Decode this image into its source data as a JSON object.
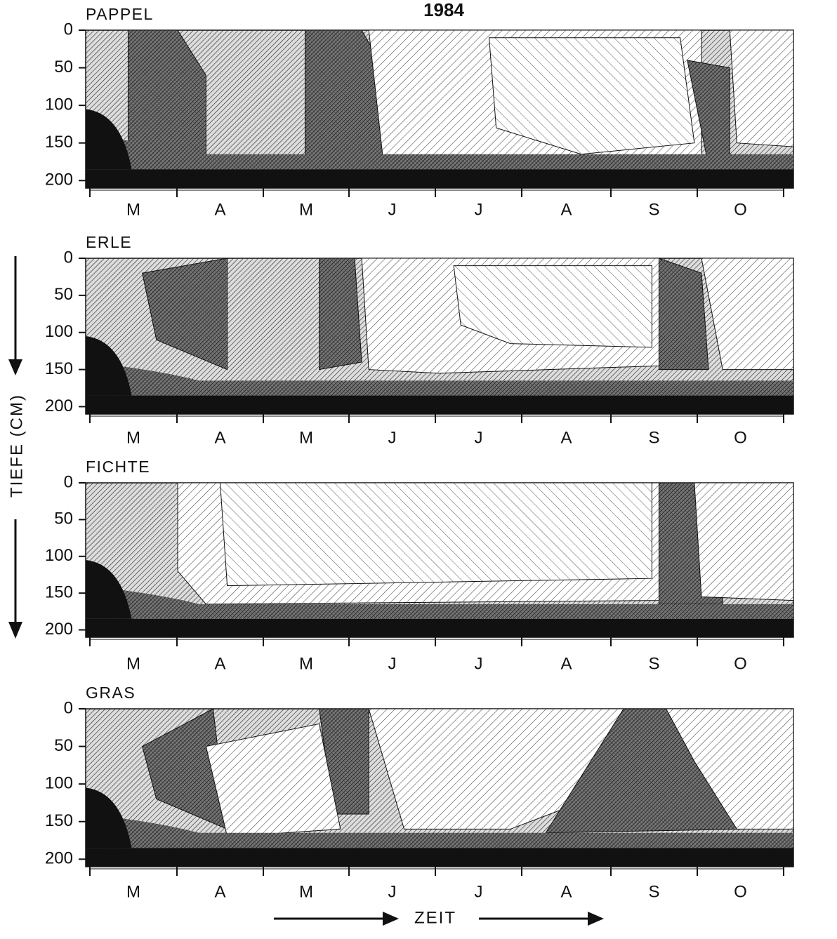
{
  "title": "1984",
  "ylabel": "TIEFE (CM)",
  "xlabel": "ZEIT",
  "chart_data": [
    {
      "type": "contour",
      "title": "PAPPEL",
      "categories": [
        "M",
        "A",
        "M",
        "J",
        "J",
        "A",
        "S",
        "O"
      ],
      "ylim": [
        0,
        210
      ],
      "yticks": [
        0,
        50,
        100,
        150,
        200
      ],
      "y_inverted": true
    },
    {
      "type": "contour",
      "title": "ERLE",
      "categories": [
        "M",
        "A",
        "M",
        "J",
        "J",
        "A",
        "S",
        "O"
      ],
      "ylim": [
        0,
        210
      ],
      "yticks": [
        0,
        50,
        100,
        150,
        200
      ],
      "y_inverted": true
    },
    {
      "type": "contour",
      "title": "FICHTE",
      "categories": [
        "M",
        "A",
        "M",
        "J",
        "J",
        "A",
        "S",
        "O"
      ],
      "ylim": [
        0,
        210
      ],
      "yticks": [
        0,
        50,
        100,
        150,
        200
      ],
      "y_inverted": true
    },
    {
      "type": "contour",
      "title": "GRAS",
      "categories": [
        "M",
        "A",
        "M",
        "J",
        "J",
        "A",
        "S",
        "O"
      ],
      "ylim": [
        0,
        210
      ],
      "yticks": [
        0,
        50,
        100,
        150,
        200
      ],
      "y_inverted": true
    }
  ]
}
